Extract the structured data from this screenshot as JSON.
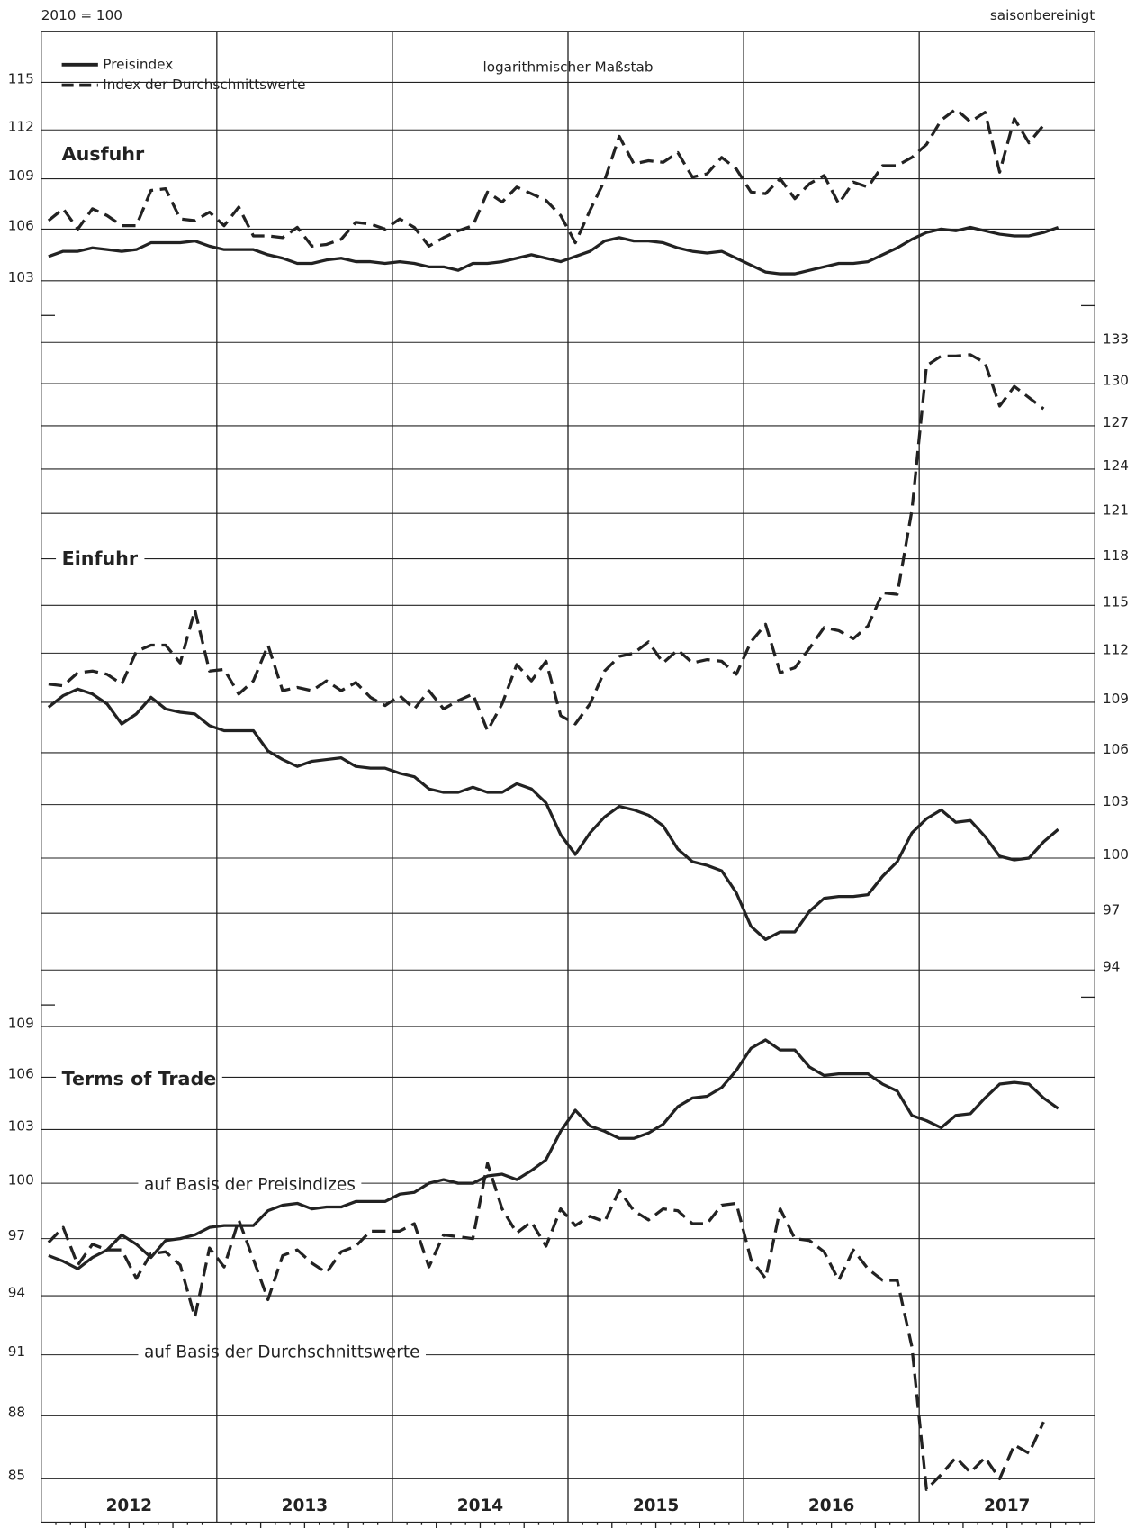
{
  "header": {
    "base": "2010 = 100",
    "note": "saisonbereinigt",
    "scale_note": "logarithmischer Maßstab"
  },
  "years": [
    "2012",
    "2013",
    "2014",
    "2015",
    "2016",
    "2017"
  ],
  "chart_data": [
    {
      "type": "line",
      "title": "Ausfuhr",
      "log_scale": true,
      "grid": true,
      "y_axis_side": "left",
      "legend": "upper left",
      "ylim": [
        101.7,
        118.3
      ],
      "yticks": [
        103,
        106,
        109,
        112,
        115
      ],
      "series": [
        {
          "name": "Preisindex",
          "color": "#222222",
          "dashed": false,
          "values": [
            104.4,
            104.7,
            104.7,
            104.9,
            104.8,
            104.7,
            104.8,
            105.2,
            105.2,
            105.2,
            105.3,
            105.0,
            104.8,
            104.8,
            104.8,
            104.5,
            104.3,
            104.0,
            104.0,
            104.2,
            104.3,
            104.1,
            104.1,
            104.0,
            104.1,
            104.0,
            103.8,
            103.8,
            103.6,
            104.0,
            104.0,
            104.1,
            104.3,
            104.5,
            104.3,
            104.1,
            104.4,
            104.7,
            105.3,
            105.5,
            105.3,
            105.3,
            105.2,
            104.9,
            104.7,
            104.6,
            104.7,
            104.3,
            103.9,
            103.5,
            103.4,
            103.4,
            103.6,
            103.8,
            104.0,
            104.0,
            104.1,
            104.5,
            104.9,
            105.4,
            105.8,
            106.0,
            105.9,
            106.1,
            105.9,
            105.7,
            105.6,
            105.6,
            105.8,
            106.1
          ]
        },
        {
          "name": "Index der Durchschnittswerte",
          "color": "#222222",
          "dashed": true,
          "values": [
            106.5,
            107.2,
            106.0,
            107.2,
            106.8,
            106.2,
            106.2,
            108.3,
            108.4,
            106.6,
            106.5,
            107.0,
            106.2,
            107.3,
            105.6,
            105.6,
            105.5,
            106.1,
            105.0,
            105.1,
            105.4,
            106.4,
            106.3,
            106.0,
            106.6,
            106.1,
            105.0,
            105.5,
            105.9,
            106.2,
            108.2,
            107.6,
            108.5,
            108.1,
            107.7,
            106.8,
            105.2,
            107.1,
            108.9,
            111.6,
            109.9,
            110.1,
            110.0,
            110.6,
            109.1,
            109.3,
            110.3,
            109.6,
            108.2,
            108.1,
            109.0,
            107.8,
            108.7,
            109.2,
            107.5,
            108.8,
            108.5,
            109.8,
            109.8,
            110.3,
            111.1,
            112.6,
            113.3,
            112.5,
            113.1,
            109.4,
            112.7,
            111.2,
            112.3,
            null
          ]
        }
      ]
    },
    {
      "type": "line",
      "title": "Einfuhr",
      "log_scale": true,
      "grid": true,
      "y_axis_side": "right",
      "ylim": [
        92.6,
        135.0
      ],
      "yticks": [
        94,
        97,
        100,
        103,
        106,
        109,
        112,
        115,
        118,
        121,
        124,
        127,
        130,
        133
      ],
      "series": [
        {
          "color": "#222222",
          "dashed": false,
          "values": [
            108.7,
            109.4,
            109.8,
            109.5,
            108.9,
            107.7,
            108.3,
            109.3,
            108.6,
            108.4,
            108.3,
            107.6,
            107.3,
            107.3,
            107.3,
            106.1,
            105.6,
            105.2,
            105.5,
            105.6,
            105.7,
            105.2,
            105.1,
            105.1,
            104.8,
            104.6,
            103.9,
            103.7,
            103.7,
            104.0,
            103.7,
            103.7,
            104.2,
            103.9,
            103.1,
            101.3,
            100.2,
            101.4,
            102.3,
            102.9,
            102.7,
            102.4,
            101.8,
            100.5,
            99.8,
            99.6,
            99.3,
            98.1,
            96.3,
            95.6,
            96.0,
            96.0,
            97.1,
            97.8,
            97.9,
            97.9,
            98.0,
            99.0,
            99.8,
            101.4,
            102.2,
            102.7,
            102.0,
            102.1,
            101.2,
            100.1,
            99.9,
            100.0,
            100.9,
            101.6
          ]
        },
        {
          "color": "#222222",
          "dashed": true,
          "values": [
            110.1,
            110.0,
            110.8,
            110.9,
            110.7,
            110.1,
            112.1,
            112.5,
            112.5,
            111.4,
            114.7,
            110.9,
            111.0,
            109.5,
            110.3,
            112.5,
            109.7,
            109.9,
            109.7,
            110.3,
            109.7,
            110.2,
            109.3,
            108.8,
            109.4,
            108.6,
            109.7,
            108.6,
            109.1,
            109.5,
            107.3,
            108.9,
            111.3,
            110.3,
            111.5,
            108.2,
            107.7,
            108.9,
            110.9,
            111.8,
            112.0,
            112.7,
            111.4,
            112.2,
            111.4,
            111.6,
            111.5,
            110.7,
            112.7,
            113.8,
            110.8,
            111.1,
            112.3,
            113.6,
            113.4,
            112.9,
            113.7,
            115.8,
            115.7,
            121.2,
            131.3,
            132.0,
            132.0,
            132.1,
            131.5,
            128.4,
            129.8,
            129.0,
            128.2,
            null
          ]
        }
      ]
    },
    {
      "type": "line",
      "title": "Terms of Trade",
      "log_scale": true,
      "grid": true,
      "y_axis_side": "left",
      "ylim": [
        83.0,
        110.3
      ],
      "yticks": [
        85,
        88,
        91,
        94,
        97,
        100,
        103,
        106,
        109
      ],
      "series": [
        {
          "name": "auf Basis der Preisindizes",
          "color": "#222222",
          "dashed": false,
          "values": [
            96.1,
            95.8,
            95.4,
            96.0,
            96.4,
            97.2,
            96.7,
            96.0,
            96.9,
            97.0,
            97.2,
            97.6,
            97.7,
            97.7,
            97.7,
            98.5,
            98.8,
            98.9,
            98.6,
            98.7,
            98.7,
            99.0,
            99.0,
            99.0,
            99.4,
            99.5,
            100.0,
            100.2,
            100.0,
            100.0,
            100.4,
            100.5,
            100.2,
            100.7,
            101.3,
            102.9,
            104.1,
            103.2,
            102.9,
            102.5,
            102.5,
            102.8,
            103.3,
            104.3,
            104.8,
            104.9,
            105.4,
            106.4,
            107.7,
            108.2,
            107.6,
            107.6,
            106.6,
            106.1,
            106.2,
            106.2,
            106.2,
            105.6,
            105.2,
            103.8,
            103.5,
            103.1,
            103.8,
            103.9,
            104.8,
            105.6,
            105.7,
            105.6,
            104.8,
            104.2
          ]
        },
        {
          "name": "auf Basis der Durchschnittswerte",
          "color": "#222222",
          "dashed": true,
          "values": [
            96.8,
            97.6,
            95.6,
            96.7,
            96.4,
            96.4,
            94.9,
            96.2,
            96.3,
            95.6,
            92.9,
            96.5,
            95.5,
            98.0,
            95.9,
            93.8,
            96.1,
            96.4,
            95.7,
            95.2,
            96.3,
            96.6,
            97.4,
            97.4,
            97.4,
            97.8,
            95.5,
            97.2,
            97.1,
            97.0,
            101.1,
            98.6,
            97.3,
            97.9,
            96.6,
            98.6,
            97.7,
            98.2,
            97.9,
            99.6,
            98.5,
            98.0,
            98.6,
            98.5,
            97.8,
            97.8,
            98.8,
            98.9,
            95.9,
            94.9,
            98.6,
            97.0,
            96.9,
            96.3,
            94.8,
            96.4,
            95.4,
            94.8,
            94.8,
            91.4,
            84.5,
            85.2,
            86.0,
            85.3,
            86.0,
            85.0,
            86.6,
            86.2,
            87.7,
            null
          ]
        }
      ]
    }
  ]
}
